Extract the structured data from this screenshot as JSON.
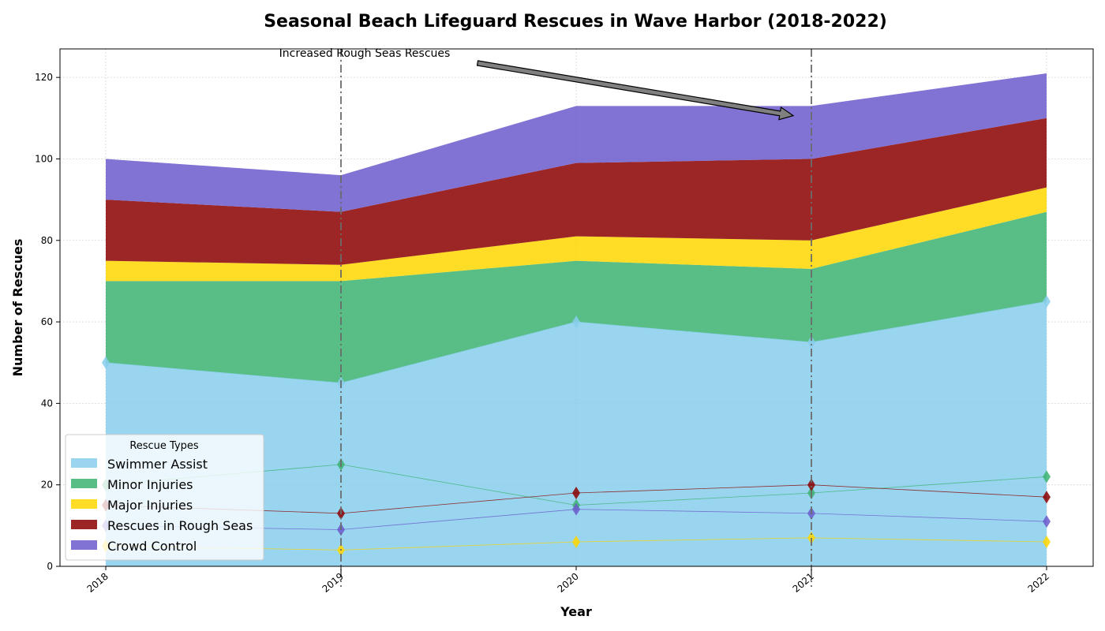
{
  "chart_data": {
    "type": "area",
    "stacked": true,
    "title": "Seasonal Beach Lifeguard Rescues in Wave Harbor (2018-2022)",
    "xlabel": "Year",
    "ylabel": "Number of Rescues",
    "categories": [
      "2018",
      "2019",
      "2020",
      "2021",
      "2022"
    ],
    "ylim": [
      0,
      127
    ],
    "yticks": [
      0,
      20,
      40,
      60,
      80,
      100,
      120
    ],
    "grid": true,
    "legend_title": "Rescue Types",
    "legend_position": "lower-left",
    "series": [
      {
        "name": "Swimmer Assist",
        "values": [
          50,
          45,
          60,
          55,
          65
        ],
        "color": "#87CEEB"
      },
      {
        "name": "Minor Injuries",
        "values": [
          20,
          25,
          15,
          18,
          22
        ],
        "color": "#3CB371"
      },
      {
        "name": "Major Injuries",
        "values": [
          5,
          4,
          6,
          7,
          6
        ],
        "color": "#FFD700"
      },
      {
        "name": "Rescues in Rough Seas",
        "values": [
          15,
          13,
          18,
          20,
          17
        ],
        "color": "#8B0000"
      },
      {
        "name": "Crowd Control",
        "values": [
          10,
          9,
          14,
          13,
          11
        ],
        "color": "#6A5ACD"
      }
    ],
    "vertical_lines_at": [
      "2019",
      "2021"
    ],
    "annotation": {
      "text": "Increased Rough Seas Rescues",
      "points_to": {
        "x": "2021",
        "y": 111
      }
    }
  }
}
